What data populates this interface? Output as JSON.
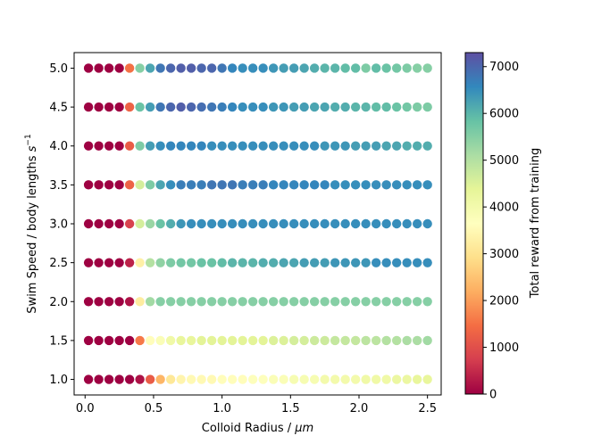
{
  "chart_data": {
    "type": "scatter",
    "xlabel_text": "Colloid Radius / ",
    "xlabel_unit": "μm",
    "ylabel_text": "Swim Speed / body lengths ",
    "ylabel_unit_base": "s",
    "ylabel_unit_exp": "−1",
    "colorbar_label": "Total reward from training",
    "colormap": "Spectral",
    "color_range": [
      0,
      7300
    ],
    "xlim": [
      -0.08,
      2.6
    ],
    "ylim": [
      0.8,
      5.2
    ],
    "x_ticks": [
      0.0,
      0.5,
      1.0,
      1.5,
      2.0,
      2.5
    ],
    "x_tick_labels": [
      "0.0",
      "0.5",
      "1.0",
      "1.5",
      "2.0",
      "2.5"
    ],
    "y_ticks": [
      1.0,
      1.5,
      2.0,
      2.5,
      3.0,
      3.5,
      4.0,
      4.5,
      5.0
    ],
    "y_tick_labels": [
      "1.0",
      "1.5",
      "2.0",
      "2.5",
      "3.0",
      "3.5",
      "4.0",
      "4.5",
      "5.0"
    ],
    "colorbar_ticks": [
      0,
      1000,
      2000,
      3000,
      4000,
      5000,
      6000,
      7000
    ],
    "colorbar_tick_labels": [
      "0",
      "1000",
      "2000",
      "3000",
      "4000",
      "5000",
      "6000",
      "7000"
    ],
    "x_values": [
      0.025,
      0.1,
      0.175,
      0.25,
      0.325,
      0.4,
      0.475,
      0.55,
      0.625,
      0.7,
      0.775,
      0.85,
      0.925,
      1.0,
      1.075,
      1.15,
      1.225,
      1.3,
      1.375,
      1.45,
      1.525,
      1.6,
      1.675,
      1.75,
      1.825,
      1.9,
      1.975,
      2.05,
      2.125,
      2.2,
      2.275,
      2.35,
      2.425,
      2.5
    ],
    "series": [
      {
        "y": 5.0,
        "rewards": [
          0,
          0,
          0,
          0,
          1500,
          5500,
          6200,
          6800,
          7000,
          7100,
          7100,
          7000,
          7000,
          6800,
          6600,
          6500,
          6500,
          6500,
          6400,
          6300,
          6300,
          6200,
          6100,
          6000,
          6000,
          5900,
          5900,
          5600,
          5900,
          5800,
          5700,
          5600,
          5500,
          5500
        ]
      },
      {
        "y": 4.5,
        "rewards": [
          0,
          0,
          0,
          0,
          1300,
          5800,
          6300,
          6800,
          7000,
          7100,
          7000,
          6900,
          6800,
          6700,
          6600,
          6500,
          6500,
          6500,
          6400,
          6400,
          6300,
          6300,
          6200,
          6200,
          6100,
          6100,
          6000,
          6000,
          5900,
          5900,
          5800,
          5700,
          5600,
          5600
        ]
      },
      {
        "y": 4.0,
        "rewards": [
          0,
          0,
          0,
          0,
          1200,
          5600,
          6300,
          6500,
          6600,
          6600,
          6600,
          6600,
          6500,
          6500,
          6500,
          6500,
          6500,
          6500,
          6500,
          6500,
          6500,
          6500,
          6500,
          6400,
          6400,
          6400,
          6300,
          6300,
          6300,
          6200,
          6200,
          6100,
          6100,
          6100
        ]
      },
      {
        "y": 3.5,
        "rewards": [
          0,
          0,
          0,
          0,
          1300,
          4600,
          5600,
          6200,
          6500,
          6700,
          6700,
          6700,
          6800,
          6800,
          6800,
          6700,
          6700,
          6700,
          6600,
          6600,
          6600,
          6600,
          6600,
          6600,
          6500,
          6500,
          6500,
          6500,
          6500,
          6500,
          6500,
          6500,
          6500,
          6500
        ]
      },
      {
        "y": 3.0,
        "rewards": [
          0,
          0,
          0,
          0,
          800,
          4600,
          5300,
          5800,
          6100,
          6400,
          6500,
          6500,
          6500,
          6500,
          6500,
          6500,
          6500,
          6500,
          6500,
          6500,
          6500,
          6500,
          6500,
          6500,
          6500,
          6500,
          6500,
          6500,
          6500,
          6500,
          6500,
          6500,
          6500,
          6500
        ]
      },
      {
        "y": 2.5,
        "rewards": [
          0,
          0,
          0,
          0,
          400,
          3300,
          5000,
          5400,
          5600,
          5700,
          5700,
          5800,
          5800,
          5900,
          6000,
          6000,
          6000,
          6100,
          6100,
          6200,
          6200,
          6300,
          6300,
          6300,
          6400,
          6400,
          6400,
          6400,
          6500,
          6500,
          6500,
          6500,
          6500,
          6500
        ]
      },
      {
        "y": 2.0,
        "rewards": [
          0,
          0,
          0,
          0,
          200,
          3200,
          5200,
          5500,
          5500,
          5500,
          5500,
          5500,
          5500,
          5500,
          5500,
          5500,
          5500,
          5500,
          5500,
          5500,
          5500,
          5500,
          5500,
          5500,
          5500,
          5500,
          5500,
          5500,
          5500,
          5500,
          5500,
          5500,
          5500,
          5500
        ]
      },
      {
        "y": 1.5,
        "rewards": [
          0,
          0,
          0,
          0,
          0,
          1600,
          3600,
          3800,
          4100,
          4300,
          4300,
          4400,
          4400,
          4400,
          4400,
          4400,
          4400,
          4400,
          4500,
          4500,
          4600,
          4600,
          4700,
          4700,
          4800,
          4800,
          4800,
          4900,
          4900,
          5000,
          5000,
          5100,
          5100,
          5200
        ]
      },
      {
        "y": 1.0,
        "rewards": [
          0,
          0,
          0,
          0,
          0,
          200,
          1200,
          2300,
          3100,
          3400,
          3500,
          3500,
          3500,
          3600,
          3600,
          3600,
          3700,
          3700,
          3800,
          3800,
          3900,
          3900,
          3900,
          4000,
          4000,
          4000,
          4000,
          4100,
          4100,
          4100,
          4200,
          4200,
          4300,
          4300
        ]
      }
    ]
  }
}
